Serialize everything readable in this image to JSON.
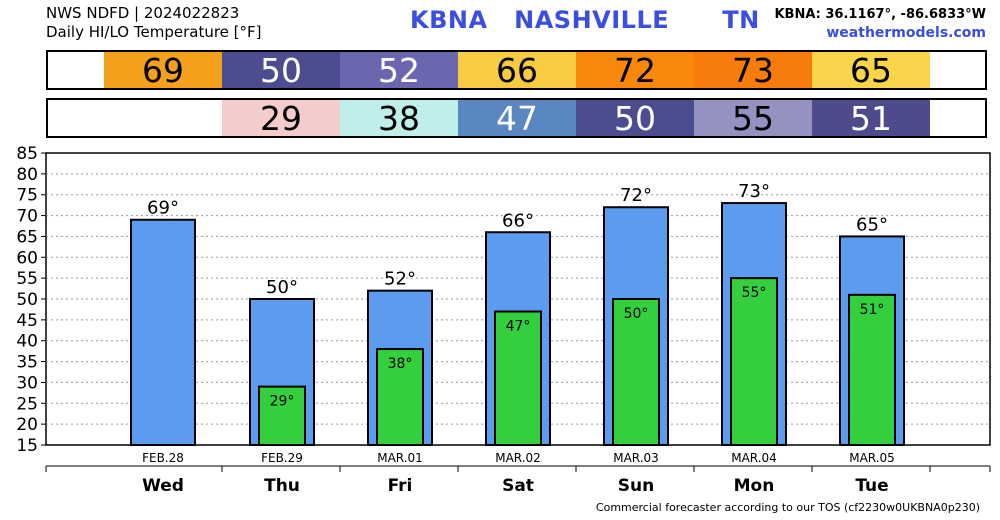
{
  "header": {
    "line1": "NWS NDFD | 2024022823",
    "line2": "Daily HI/LO Temperature [°F]",
    "station": "KBNA   NASHVILLE      TN",
    "coords": "KBNA: 36.1167°, -86.6833°W",
    "site": "weathermodels.com"
  },
  "footer": "Commercial forecaster according to our TOS (cf2230w0UKBNA0p230)",
  "hi_strip": [
    {
      "value": "69",
      "bg": "#f4a01c",
      "fg": "#000000"
    },
    {
      "value": "50",
      "bg": "#4b4d8f",
      "fg": "#ffffff"
    },
    {
      "value": "52",
      "bg": "#6b66b0",
      "fg": "#ffffff"
    },
    {
      "value": "66",
      "bg": "#f7cb42",
      "fg": "#000000"
    },
    {
      "value": "72",
      "bg": "#f8880c",
      "fg": "#000000"
    },
    {
      "value": "73",
      "bg": "#f77c0c",
      "fg": "#000000"
    },
    {
      "value": "65",
      "bg": "#f9d54c",
      "fg": "#000000"
    }
  ],
  "lo_strip": [
    {
      "value": "",
      "bg": "#ffffff",
      "fg": "#000000"
    },
    {
      "value": "29",
      "bg": "#f4cccc",
      "fg": "#000000"
    },
    {
      "value": "38",
      "bg": "#c0eeea",
      "fg": "#000000"
    },
    {
      "value": "47",
      "bg": "#5a86c2",
      "fg": "#ffffff"
    },
    {
      "value": "50",
      "bg": "#4b4d8f",
      "fg": "#ffffff"
    },
    {
      "value": "55",
      "bg": "#9591c0",
      "fg": "#000000"
    },
    {
      "value": "51",
      "bg": "#4d4b8c",
      "fg": "#ffffff"
    }
  ],
  "chart_data": {
    "type": "bar",
    "categories": [
      "FEB.28",
      "FEB.29",
      "MAR.01",
      "MAR.02",
      "MAR.03",
      "MAR.04",
      "MAR.05"
    ],
    "weekdays": [
      "Wed",
      "Thu",
      "Fri",
      "Sat",
      "Sun",
      "Mon",
      "Tue"
    ],
    "series": [
      {
        "values": [
          69,
          50,
          52,
          66,
          72,
          73,
          65
        ],
        "color": "#5b9cf0",
        "labels": [
          "69°",
          "50°",
          "52°",
          "66°",
          "72°",
          "73°",
          "65°"
        ]
      },
      {
        "values": [
          null,
          29,
          38,
          47,
          50,
          55,
          51
        ],
        "color": "#34cf3c",
        "labels": [
          "",
          "29°",
          "38°",
          "47°",
          "50°",
          "55°",
          "51°"
        ]
      }
    ],
    "ylim": [
      15,
      85
    ],
    "yticks": [
      15,
      20,
      25,
      30,
      35,
      40,
      45,
      50,
      55,
      60,
      65,
      70,
      75,
      80,
      85
    ],
    "grid": true,
    "xlabel": "",
    "ylabel": "",
    "title": ""
  }
}
